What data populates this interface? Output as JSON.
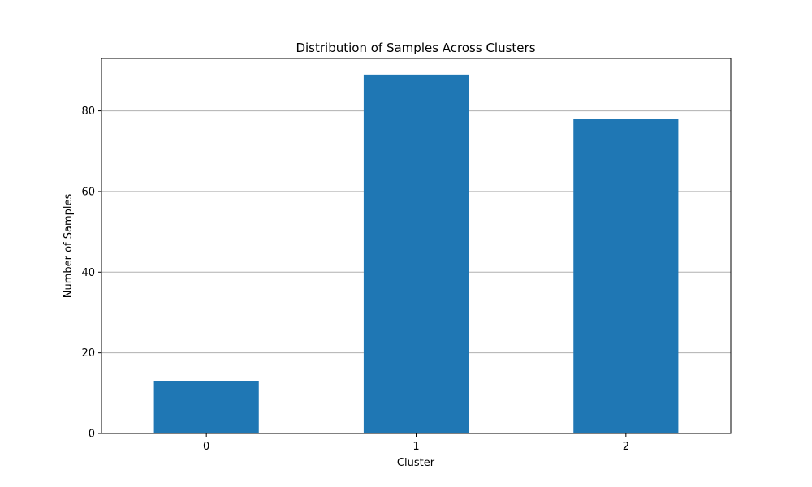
{
  "chart_data": {
    "type": "bar",
    "title": "Distribution of Samples Across Clusters",
    "xlabel": "Cluster",
    "ylabel": "Number of Samples",
    "categories": [
      "0",
      "1",
      "2"
    ],
    "values": [
      13,
      89,
      78
    ],
    "ylim": [
      0,
      93
    ],
    "yticks": [
      0,
      20,
      40,
      60,
      80
    ],
    "grid": "y",
    "bar_color": "#1f77b4",
    "grid_color": "#b0b0b0"
  }
}
